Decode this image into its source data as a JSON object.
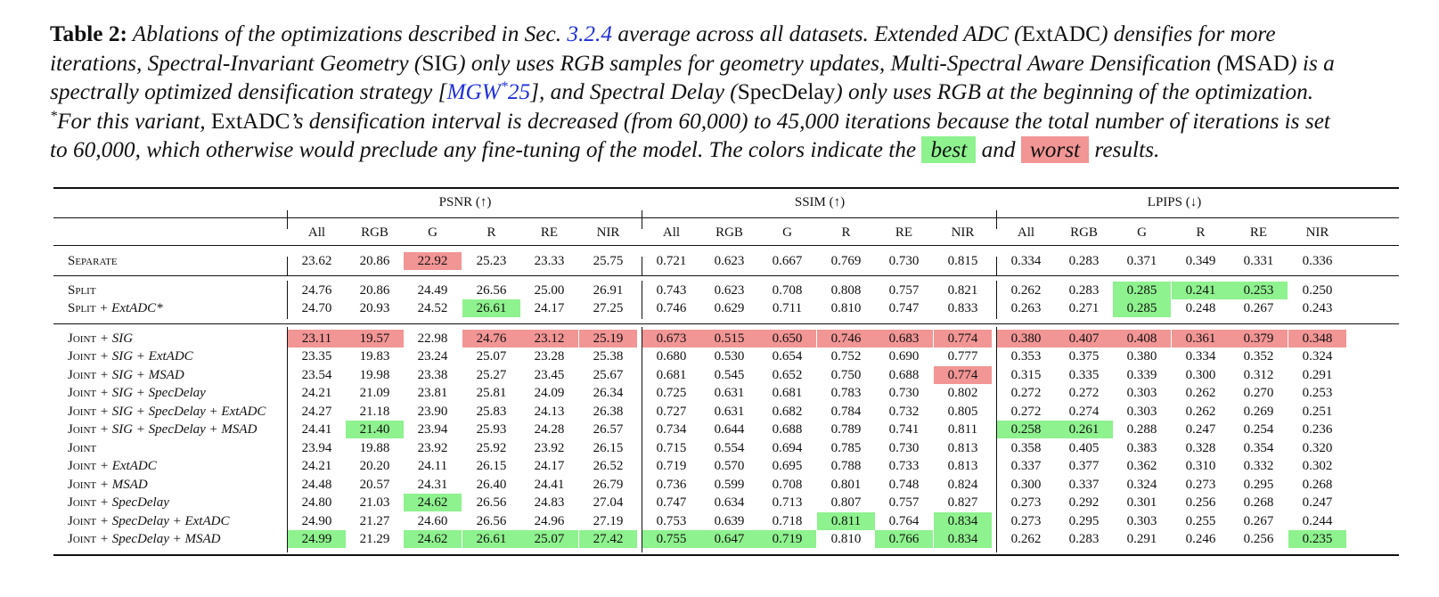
{
  "caption": {
    "label": "Table 2:",
    "line1_pre": "Ablations of the optimizations described in Sec.",
    "sec_ref": "3.2.4",
    "line1_post": "average across all datasets. Extended ADC (",
    "extadc": "ExtADC",
    "line1_end": ") densifies for more",
    "line2_a": "iterations, Spectral-Invariant Geometry (",
    "sig": "SIG",
    "line2_b": ") only uses RGB samples for geometry updates, Multi-Spectral Aware Densification (",
    "msad": "MSAD",
    "line2_c": ") is a",
    "line3_a": "spectrally optimized densification strategy [",
    "cite_main": "MGW",
    "cite_star": "*",
    "cite_year": "25",
    "line3_b": "], and Spectral Delay (",
    "specdelay": "SpecDelay",
    "line3_c": ") only uses RGB at the beginning of the optimization.",
    "line4_star": "*",
    "line4_a": "For this variant,",
    "line4_extadc": "ExtADC",
    "line4_b": "’s densification interval is decreased (from 60,000) to 45,000 iterations because the total number of iterations is set",
    "line5_a": "to 60,000, which otherwise would preclude any fine-tuning of the model. The colors indicate the",
    "best_label": "best",
    "and_word": "and",
    "worst_label": "worst",
    "line5_end": "results."
  },
  "colors": {
    "best": "#8ef28e",
    "worst": "#f29595"
  },
  "table": {
    "groups": [
      "PSNR (↑)",
      "SSIM (↑)",
      "LPIPS (↓)"
    ],
    "columns": [
      "All",
      "RGB",
      "G",
      "R",
      "RE",
      "NIR"
    ],
    "rows": [
      {
        "sc": "Separate",
        "rest": "",
        "values": [
          "23.62",
          "20.86",
          "22.92",
          "25.23",
          "23.33",
          "25.75",
          "0.721",
          "0.623",
          "0.667",
          "0.769",
          "0.730",
          "0.815",
          "0.334",
          "0.283",
          "0.371",
          "0.349",
          "0.331",
          "0.336"
        ],
        "hl": [
          "",
          "",
          "w",
          "",
          "",
          "",
          "",
          "",
          "",
          "",
          "",
          "",
          "",
          "",
          "",
          "",
          "",
          ""
        ]
      },
      {
        "sc": "Split",
        "rest": "",
        "values": [
          "24.76",
          "20.86",
          "24.49",
          "26.56",
          "25.00",
          "26.91",
          "0.743",
          "0.623",
          "0.708",
          "0.808",
          "0.757",
          "0.821",
          "0.262",
          "0.283",
          "0.285",
          "0.241",
          "0.253",
          "0.250"
        ],
        "hl": [
          "",
          "",
          "",
          "",
          "",
          "",
          "",
          "",
          "",
          "",
          "",
          "",
          "",
          "",
          "b",
          "b",
          "b",
          ""
        ]
      },
      {
        "sc": "Split",
        "rest": " + ExtADC*",
        "values": [
          "24.70",
          "20.93",
          "24.52",
          "26.61",
          "24.17",
          "27.25",
          "0.746",
          "0.629",
          "0.711",
          "0.810",
          "0.747",
          "0.833",
          "0.263",
          "0.271",
          "0.285",
          "0.248",
          "0.267",
          "0.243"
        ],
        "hl": [
          "",
          "",
          "",
          "b",
          "",
          "",
          "",
          "",
          "",
          "",
          "",
          "",
          "",
          "",
          "b",
          "",
          "",
          ""
        ]
      },
      {
        "sc": "Joint",
        "rest": " + SIG",
        "values": [
          "23.11",
          "19.57",
          "22.98",
          "24.76",
          "23.12",
          "25.19",
          "0.673",
          "0.515",
          "0.650",
          "0.746",
          "0.683",
          "0.774",
          "0.380",
          "0.407",
          "0.408",
          "0.361",
          "0.379",
          "0.348"
        ],
        "hl": [
          "w",
          "w",
          "",
          "w",
          "w",
          "w",
          "w",
          "w",
          "w",
          "w",
          "w",
          "w",
          "w",
          "w",
          "w",
          "w",
          "w",
          "w"
        ]
      },
      {
        "sc": "Joint",
        "rest": " + SIG + ExtADC",
        "values": [
          "23.35",
          "19.83",
          "23.24",
          "25.07",
          "23.28",
          "25.38",
          "0.680",
          "0.530",
          "0.654",
          "0.752",
          "0.690",
          "0.777",
          "0.353",
          "0.375",
          "0.380",
          "0.334",
          "0.352",
          "0.324"
        ],
        "hl": [
          "",
          "",
          "",
          "",
          "",
          "",
          "",
          "",
          "",
          "",
          "",
          "",
          "",
          "",
          "",
          "",
          "",
          ""
        ]
      },
      {
        "sc": "Joint",
        "rest": " + SIG + MSAD",
        "values": [
          "23.54",
          "19.98",
          "23.38",
          "25.27",
          "23.45",
          "25.67",
          "0.681",
          "0.545",
          "0.652",
          "0.750",
          "0.688",
          "0.774",
          "0.315",
          "0.335",
          "0.339",
          "0.300",
          "0.312",
          "0.291"
        ],
        "hl": [
          "",
          "",
          "",
          "",
          "",
          "",
          "",
          "",
          "",
          "",
          "",
          "w",
          "",
          "",
          "",
          "",
          "",
          ""
        ]
      },
      {
        "sc": "Joint",
        "rest": " + SIG + SpecDelay",
        "values": [
          "24.21",
          "21.09",
          "23.81",
          "25.81",
          "24.09",
          "26.34",
          "0.725",
          "0.631",
          "0.681",
          "0.783",
          "0.730",
          "0.802",
          "0.272",
          "0.272",
          "0.303",
          "0.262",
          "0.270",
          "0.253"
        ],
        "hl": [
          "",
          "",
          "",
          "",
          "",
          "",
          "",
          "",
          "",
          "",
          "",
          "",
          "",
          "",
          "",
          "",
          "",
          ""
        ]
      },
      {
        "sc": "Joint",
        "rest": " + SIG + SpecDelay + ExtADC",
        "values": [
          "24.27",
          "21.18",
          "23.90",
          "25.83",
          "24.13",
          "26.38",
          "0.727",
          "0.631",
          "0.682",
          "0.784",
          "0.732",
          "0.805",
          "0.272",
          "0.274",
          "0.303",
          "0.262",
          "0.269",
          "0.251"
        ],
        "hl": [
          "",
          "",
          "",
          "",
          "",
          "",
          "",
          "",
          "",
          "",
          "",
          "",
          "",
          "",
          "",
          "",
          "",
          ""
        ]
      },
      {
        "sc": "Joint",
        "rest": " + SIG + SpecDelay + MSAD",
        "values": [
          "24.41",
          "21.40",
          "23.94",
          "25.93",
          "24.28",
          "26.57",
          "0.734",
          "0.644",
          "0.688",
          "0.789",
          "0.741",
          "0.811",
          "0.258",
          "0.261",
          "0.288",
          "0.247",
          "0.254",
          "0.236"
        ],
        "hl": [
          "",
          "b",
          "",
          "",
          "",
          "",
          "",
          "",
          "",
          "",
          "",
          "",
          "b",
          "b",
          "",
          "",
          "",
          ""
        ]
      },
      {
        "sc": "Joint",
        "rest": "",
        "values": [
          "23.94",
          "19.88",
          "23.92",
          "25.92",
          "23.92",
          "26.15",
          "0.715",
          "0.554",
          "0.694",
          "0.785",
          "0.730",
          "0.813",
          "0.358",
          "0.405",
          "0.383",
          "0.328",
          "0.354",
          "0.320"
        ],
        "hl": [
          "",
          "",
          "",
          "",
          "",
          "",
          "",
          "",
          "",
          "",
          "",
          "",
          "",
          "",
          "",
          "",
          "",
          ""
        ]
      },
      {
        "sc": "Joint",
        "rest": " + ExtADC",
        "values": [
          "24.21",
          "20.20",
          "24.11",
          "26.15",
          "24.17",
          "26.52",
          "0.719",
          "0.570",
          "0.695",
          "0.788",
          "0.733",
          "0.813",
          "0.337",
          "0.377",
          "0.362",
          "0.310",
          "0.332",
          "0.302"
        ],
        "hl": [
          "",
          "",
          "",
          "",
          "",
          "",
          "",
          "",
          "",
          "",
          "",
          "",
          "",
          "",
          "",
          "",
          "",
          ""
        ]
      },
      {
        "sc": "Joint",
        "rest": " + MSAD",
        "values": [
          "24.48",
          "20.57",
          "24.31",
          "26.40",
          "24.41",
          "26.79",
          "0.736",
          "0.599",
          "0.708",
          "0.801",
          "0.748",
          "0.824",
          "0.300",
          "0.337",
          "0.324",
          "0.273",
          "0.295",
          "0.268"
        ],
        "hl": [
          "",
          "",
          "",
          "",
          "",
          "",
          "",
          "",
          "",
          "",
          "",
          "",
          "",
          "",
          "",
          "",
          "",
          ""
        ]
      },
      {
        "sc": "Joint",
        "rest": " + SpecDelay",
        "values": [
          "24.80",
          "21.03",
          "24.62",
          "26.56",
          "24.83",
          "27.04",
          "0.747",
          "0.634",
          "0.713",
          "0.807",
          "0.757",
          "0.827",
          "0.273",
          "0.292",
          "0.301",
          "0.256",
          "0.268",
          "0.247"
        ],
        "hl": [
          "",
          "",
          "b",
          "",
          "",
          "",
          "",
          "",
          "",
          "",
          "",
          "",
          "",
          "",
          "",
          "",
          "",
          ""
        ]
      },
      {
        "sc": "Joint",
        "rest": " + SpecDelay + ExtADC",
        "values": [
          "24.90",
          "21.27",
          "24.60",
          "26.56",
          "24.96",
          "27.19",
          "0.753",
          "0.639",
          "0.718",
          "0.811",
          "0.764",
          "0.834",
          "0.273",
          "0.295",
          "0.303",
          "0.255",
          "0.267",
          "0.244"
        ],
        "hl": [
          "",
          "",
          "",
          "",
          "",
          "",
          "",
          "",
          "",
          "b",
          "",
          "b",
          "",
          "",
          "",
          "",
          "",
          ""
        ]
      },
      {
        "sc": "Joint",
        "rest": " + SpecDelay + MSAD",
        "values": [
          "24.99",
          "21.29",
          "24.62",
          "26.61",
          "25.07",
          "27.42",
          "0.755",
          "0.647",
          "0.719",
          "0.810",
          "0.766",
          "0.834",
          "0.262",
          "0.283",
          "0.291",
          "0.246",
          "0.256",
          "0.235"
        ],
        "hl": [
          "b",
          "",
          "b",
          "b",
          "b",
          "b",
          "b",
          "b",
          "b",
          "",
          "b",
          "b",
          "",
          "",
          "",
          "",
          "",
          "b"
        ]
      }
    ]
  }
}
